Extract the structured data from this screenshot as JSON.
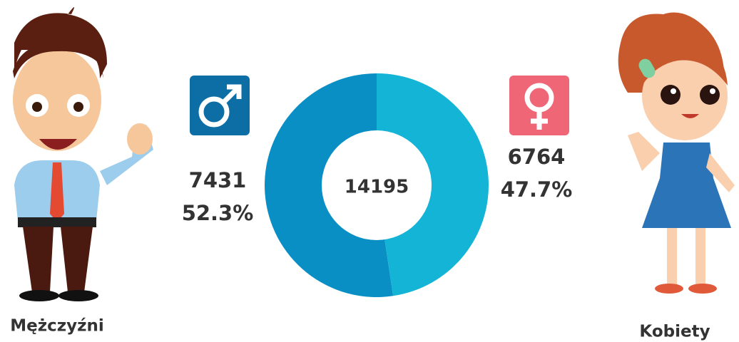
{
  "chart_data": {
    "type": "donut",
    "categories": [
      "Mężczyźni",
      "Kobiety"
    ],
    "values": [
      7431,
      6764
    ],
    "percent_labels": [
      "52.3%",
      "47.7%"
    ],
    "total": 14195,
    "colors": [
      "#0a8fc5",
      "#13b4d6"
    ]
  }
}
